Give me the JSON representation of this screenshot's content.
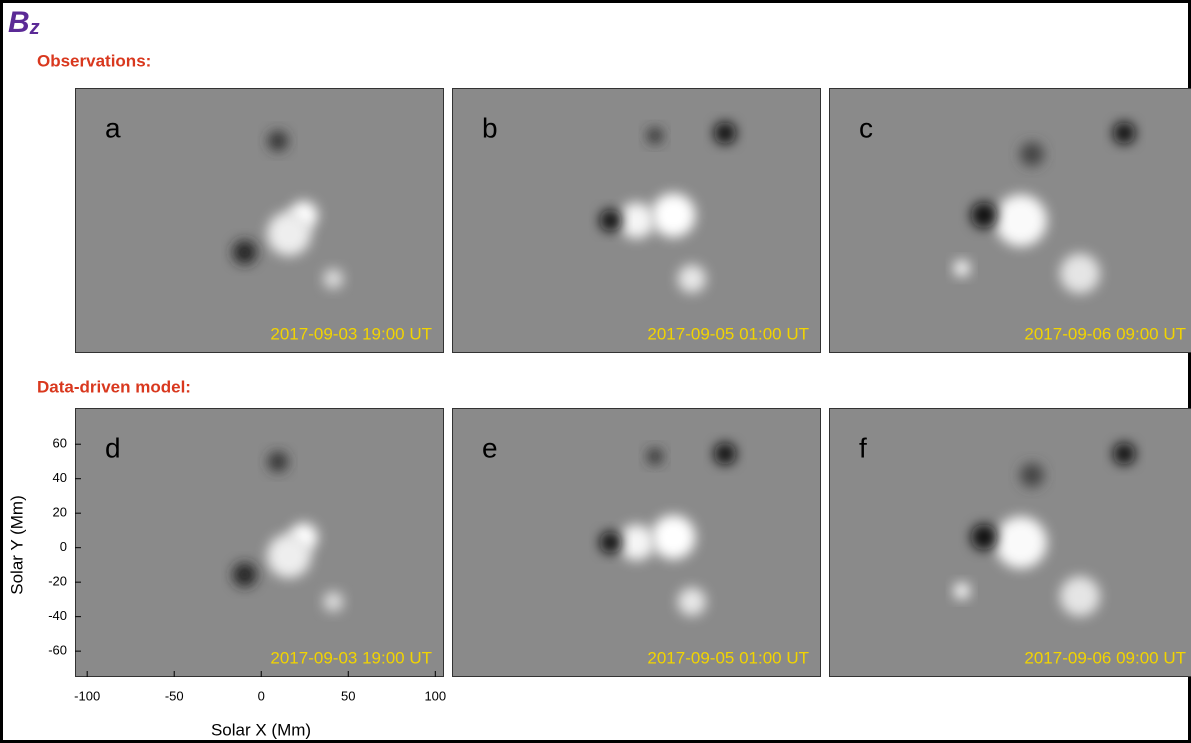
{
  "title": {
    "main": "B",
    "sub": "z"
  },
  "rows": [
    {
      "label": "Observations:",
      "panels": [
        {
          "letter": "a",
          "time": "2017-09-03 19:00 UT"
        },
        {
          "letter": "b",
          "time": "2017-09-05 01:00 UT"
        },
        {
          "letter": "c",
          "time": "2017-09-06 09:00 UT"
        }
      ]
    },
    {
      "label": "Data-driven model:",
      "panels": [
        {
          "letter": "d",
          "time": "2017-09-03 19:00 UT"
        },
        {
          "letter": "e",
          "time": "2017-09-05 01:00 UT"
        },
        {
          "letter": "f",
          "time": "2017-09-06 09:00 UT"
        }
      ]
    }
  ],
  "x_axis": {
    "label": "Solar X (Mm)",
    "lim": [
      -107,
      105
    ],
    "ticks": [
      -100,
      -50,
      0,
      50,
      100
    ]
  },
  "y_axis": {
    "label": "Solar Y (Mm)",
    "lim": [
      -75,
      81
    ],
    "ticks": [
      60,
      40,
      20,
      0,
      -20,
      -40,
      -60
    ]
  }
}
